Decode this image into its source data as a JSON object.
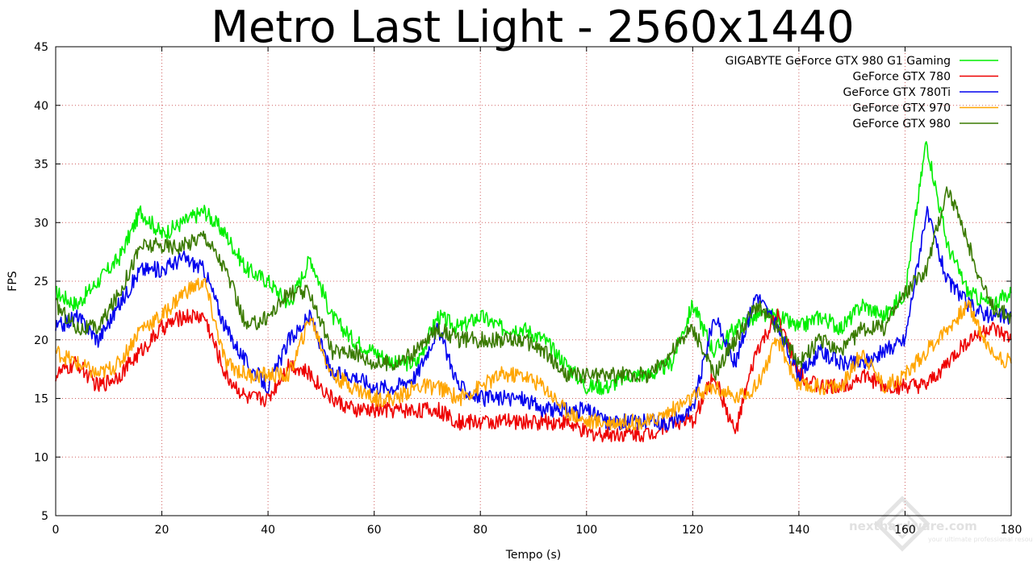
{
  "chart_data": {
    "type": "line",
    "title": "Metro Last Light - 2560x1440",
    "xlabel": "Tempo (s)",
    "ylabel": "FPS",
    "xlim": [
      0,
      180
    ],
    "ylim": [
      5,
      45
    ],
    "x_ticks": [
      "0",
      "20",
      "40",
      "60",
      "80",
      "100",
      "120",
      "140",
      "160",
      "180"
    ],
    "y_ticks": [
      "5",
      "10",
      "15",
      "20",
      "25",
      "30",
      "35",
      "40",
      "45"
    ],
    "grid": true,
    "legend_position": "top-right",
    "x": [
      0,
      4,
      8,
      12,
      16,
      20,
      24,
      28,
      32,
      36,
      40,
      44,
      48,
      52,
      56,
      60,
      64,
      68,
      72,
      76,
      80,
      84,
      88,
      92,
      96,
      100,
      104,
      108,
      112,
      116,
      120,
      124,
      128,
      132,
      136,
      140,
      144,
      148,
      152,
      156,
      160,
      164,
      168,
      172,
      176,
      180
    ],
    "series": [
      {
        "name": "GIGABYTE GeForce GTX 980 G1 Gaming",
        "color": "#00ee00",
        "values": [
          24,
          23,
          25,
          27,
          31,
          29,
          30,
          31,
          29,
          26,
          25,
          23,
          27,
          22,
          20,
          19,
          18,
          18,
          22,
          21,
          22,
          21,
          21,
          20,
          18,
          16,
          16,
          17,
          17,
          18,
          23,
          19,
          21,
          22,
          22,
          21,
          22,
          21,
          23,
          22,
          24,
          37,
          28,
          24,
          23,
          24
        ]
      },
      {
        "name": "GeForce GTX 780",
        "color": "#ee0000",
        "values": [
          17,
          18,
          16,
          17,
          19,
          21,
          22,
          22,
          17,
          15,
          15,
          18,
          17,
          15,
          14,
          14,
          14,
          14,
          14,
          13,
          13,
          13,
          13,
          13,
          13,
          12,
          12,
          12,
          12,
          13,
          13,
          17,
          12,
          19,
          22,
          17,
          16,
          16,
          17,
          16,
          16,
          16,
          18,
          20,
          21,
          20
        ]
      },
      {
        "name": "GeForce GTX 780Ti",
        "color": "#0000ee",
        "values": [
          21,
          22,
          20,
          23,
          26,
          26,
          27,
          26,
          21,
          18,
          16,
          20,
          22,
          17,
          17,
          16,
          16,
          17,
          21,
          16,
          15,
          15,
          15,
          14,
          14,
          14,
          13,
          13,
          13,
          13,
          14,
          22,
          18,
          24,
          21,
          17,
          19,
          18,
          18,
          19,
          20,
          31,
          25,
          23,
          22,
          22
        ]
      },
      {
        "name": "GeForce GTX 970",
        "color": "#ffa500",
        "values": [
          19,
          18,
          17,
          18,
          21,
          22,
          24,
          25,
          18,
          17,
          17,
          17,
          22,
          17,
          16,
          15,
          15,
          16,
          16,
          15,
          16,
          17,
          17,
          16,
          14,
          13,
          13,
          13,
          13,
          14,
          15,
          16,
          15,
          16,
          20,
          16,
          16,
          16,
          19,
          16,
          17,
          19,
          21,
          23,
          19,
          18
        ]
      },
      {
        "name": "GeForce GTX 980",
        "color": "#3a7a00",
        "values": [
          23,
          21,
          21,
          24,
          28,
          28,
          28,
          29,
          26,
          21,
          22,
          24,
          24,
          19,
          19,
          18,
          18,
          19,
          21,
          20,
          20,
          20,
          20,
          19,
          17,
          17,
          17,
          17,
          17,
          19,
          21,
          17,
          20,
          23,
          21,
          18,
          20,
          19,
          21,
          21,
          24,
          26,
          33,
          28,
          23,
          22
        ]
      }
    ]
  },
  "watermark": {
    "brand": "nexthardware.com",
    "tagline": "your ultimate professional resource"
  }
}
